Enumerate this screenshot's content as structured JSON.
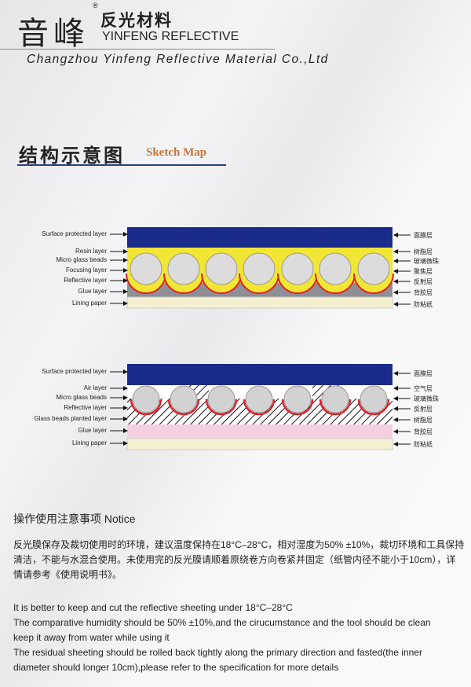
{
  "header": {
    "logo_cn": "音峰",
    "registered": "®",
    "subtitle_cn": "反光材料",
    "subtitle_en": "YINFENG REFLECTIVE",
    "company": "Changzhou Yinfeng Reflective Material Co.,Ltd"
  },
  "section": {
    "title_cn": "结构示意图",
    "title_en": "Sketch Map"
  },
  "diagram1": {
    "left_labels": [
      "Surface protected layer",
      "Resin  layer",
      "Micro glass beads",
      "Focusing layer",
      "Reflective layer",
      "Glue layer",
      "Lining paper"
    ],
    "right_labels": [
      "面膜层",
      "树脂层",
      "玻璃微珠",
      "聚焦层",
      "反射层",
      "背胶层",
      "防粘纸"
    ],
    "colors": {
      "surface": "#1a2b8c",
      "resin": "#f2e634",
      "glue": "#8e8f94",
      "lining": "#f5f0d0",
      "reflective": "#e0202a",
      "bead": "#dcdcdc"
    }
  },
  "diagram2": {
    "left_labels": [
      "Surface protected layer",
      "Air layer",
      "Micro glass beads",
      "Reflective layer",
      "Glass beads planted layer",
      "Glue layer",
      "Lining paper"
    ],
    "right_labels": [
      "面膜层",
      "空气层",
      "玻璃微珠",
      "反射层",
      "树脂层",
      "背胶层",
      "防粘纸"
    ],
    "colors": {
      "surface": "#1a2b8c",
      "glue": "#f4cfe0",
      "lining": "#f5f0d0",
      "reflective": "#e0202a",
      "bead": "#d2d2d2"
    }
  },
  "notice": {
    "title": "操作使用注意事项  Notice",
    "cn_text": "反光膜保存及裁切使用时的环境，建议温度保持在18°C–28°C，相对湿度为50% ±10%，裁切环境和工具保持清洁，不能与水混合使用。未使用完的反光膜请顺着原绕卷方向卷紧并固定（纸管内径不能小于10cm），详情请参考《使用说明书》。",
    "en_lines": [
      "It is better to keep and cut the reflective sheeting under 18°C–28°C",
      "The comparative humidity should be 50% ±10%,and the cirucumstance and the tool should be clean",
      "keep it away from water while using it",
      "The residual sheeting should be rolled back tightly along the primary direction and fasted(the inner",
      "diameter should longer 10cm),please refer to the specification for more details"
    ]
  }
}
